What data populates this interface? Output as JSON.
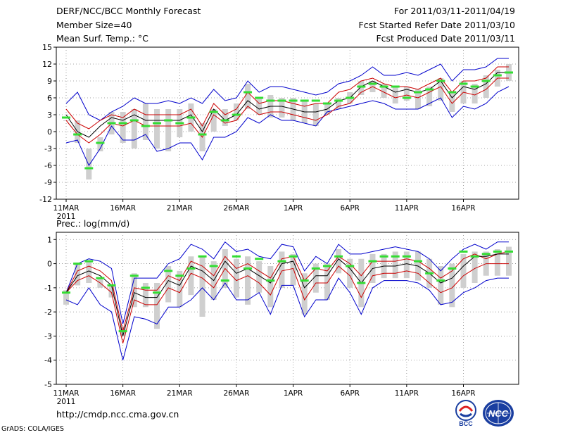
{
  "header": {
    "title": "DERF/NCC/BCC Monthly Forecast",
    "member_size": "Member Size=40",
    "variable": "Mean Surf. Temp.: °C",
    "forecast_period": "For 2011/03/11-2011/04/19",
    "fcst_started": "Fcst Started Refer Date 2011/03/10",
    "fcst_produced": "Fcst Produced Date 2011/03/11"
  },
  "footer": {
    "url": "http://cmdp.ncc.cma.gov.cn",
    "credit": "GrADS: COLA/IGES",
    "logo_bcc": "BCC",
    "logo_ncc": "NCC"
  },
  "colors": {
    "envelope": "#0000cc",
    "spread": "#cc0000",
    "mean": "#000000",
    "box": "#cfcfcf",
    "obs": "#33dd33",
    "grid": "#888888"
  },
  "chart_data": [
    {
      "type": "line",
      "title": "Mean Surf. Temp.: °C",
      "x": [
        1,
        2,
        3,
        4,
        5,
        6,
        7,
        8,
        9,
        10,
        11,
        12,
        13,
        14,
        15,
        16,
        17,
        18,
        19,
        20,
        21,
        22,
        23,
        24,
        25,
        26,
        27,
        28,
        29,
        30,
        31,
        32,
        33,
        34,
        35,
        36,
        37,
        38,
        39,
        40
      ],
      "x_ticks": {
        "positions": [
          1,
          6,
          11,
          16,
          21,
          26,
          31,
          36
        ],
        "labels": [
          "11MAR",
          "16MAR",
          "21MAR",
          "26MAR",
          "1APR",
          "6APR",
          "11APR",
          "16APR"
        ]
      },
      "x_year_label": "2011",
      "ylim": [
        -12,
        15
      ],
      "y_ticks": [
        -12,
        -9,
        -6,
        -3,
        0,
        3,
        6,
        9,
        12,
        15
      ],
      "grid": true,
      "series": [
        {
          "name": "max",
          "values": [
            5,
            7,
            3,
            2,
            3.5,
            4.5,
            6,
            5,
            5,
            5.5,
            5,
            6,
            5,
            7.5,
            5.5,
            6,
            9,
            7,
            8,
            8,
            7.5,
            7,
            6.5,
            7,
            8.5,
            9,
            10,
            11.5,
            10,
            10,
            10.5,
            10,
            11,
            12,
            9,
            11,
            11,
            11.5,
            13,
            13
          ]
        },
        {
          "name": "spread_upper",
          "values": [
            4,
            1.5,
            0.5,
            2,
            3,
            2.5,
            4,
            3,
            3,
            3,
            3,
            4,
            1,
            5,
            3,
            4,
            7,
            5,
            5.5,
            5.5,
            5,
            4.5,
            5,
            5,
            7,
            7.5,
            9,
            9.5,
            8.5,
            8,
            8,
            7.5,
            8.5,
            9.5,
            7,
            9,
            9,
            9.5,
            11.5,
            11.5
          ]
        },
        {
          "name": "mean",
          "values": [
            3,
            0,
            -1,
            1,
            2.5,
            2,
            3,
            2,
            2,
            2,
            2,
            3,
            0,
            4,
            2,
            3,
            5.5,
            4,
            4.5,
            4.5,
            4,
            3.5,
            3.5,
            4,
            5.5,
            6,
            8,
            9,
            8,
            7,
            7.5,
            7,
            7.5,
            9,
            6,
            8,
            7.5,
            8.5,
            10.5,
            10.5
          ]
        },
        {
          "name": "spread_lower",
          "values": [
            2,
            -0.5,
            -2,
            -0.5,
            1.5,
            1,
            2,
            1,
            1,
            1,
            1,
            1.5,
            -1,
            3,
            1.5,
            2,
            4.5,
            3,
            3.5,
            3.5,
            3,
            2.5,
            2,
            3,
            4.5,
            5,
            7,
            8,
            7,
            6,
            6.5,
            6,
            7,
            8,
            5,
            7,
            6.5,
            7.5,
            9.5,
            9.5
          ]
        },
        {
          "name": "min",
          "values": [
            -2,
            -1.5,
            -6,
            -3,
            1,
            -1.5,
            -1.5,
            -0.5,
            -3.5,
            -3,
            -2,
            -2,
            -5,
            -1,
            -1,
            0,
            2.5,
            1.5,
            3,
            2,
            2,
            1.5,
            1,
            3.5,
            4,
            4.5,
            5,
            5.5,
            5,
            4,
            4,
            4,
            5,
            6,
            2.5,
            4.5,
            4,
            5,
            7,
            8
          ]
        },
        {
          "name": "observed",
          "values": [
            2.5,
            -0.5,
            -6.5,
            -2,
            1.5,
            1.5,
            2,
            1,
            1.5,
            2,
            1.5,
            2.5,
            -0.5,
            3.5,
            2,
            3,
            7,
            6,
            5.5,
            5.5,
            5.5,
            5.5,
            5.5,
            5,
            5.5,
            6,
            8,
            8.5,
            8,
            8,
            6,
            7,
            7.5,
            9,
            7,
            8.5,
            8,
            9,
            10,
            10.5
          ]
        },
        {
          "name": "box_top",
          "values": [
            2,
            2,
            -3,
            -1,
            3.5,
            3.5,
            4,
            5,
            4,
            4,
            4,
            5,
            1.5,
            4,
            4,
            5,
            8.5,
            6,
            6.5,
            6,
            6,
            5.5,
            5,
            5,
            6,
            7,
            9,
            9,
            8.5,
            8,
            8,
            7.5,
            8,
            9.5,
            7,
            9,
            8.5,
            10,
            11,
            12
          ]
        },
        {
          "name": "box_bottom",
          "values": [
            2,
            -2,
            -8.5,
            -3.5,
            -0.5,
            -2,
            -3,
            -1.5,
            -3,
            -3.5,
            -1,
            0,
            -3.5,
            0,
            1,
            2,
            4,
            3,
            2.5,
            2.5,
            2,
            1.5,
            1,
            3,
            4,
            5,
            6.5,
            7,
            6,
            5,
            5.5,
            4,
            4.5,
            5.5,
            3.5,
            5,
            5,
            6,
            8,
            9
          ]
        }
      ]
    },
    {
      "type": "line",
      "title": "Prec.: log(mm/d)",
      "x": [
        1,
        2,
        3,
        4,
        5,
        6,
        7,
        8,
        9,
        10,
        11,
        12,
        13,
        14,
        15,
        16,
        17,
        18,
        19,
        20,
        21,
        22,
        23,
        24,
        25,
        26,
        27,
        28,
        29,
        30,
        31,
        32,
        33,
        34,
        35,
        36,
        37,
        38,
        39,
        40
      ],
      "x_ticks": {
        "positions": [
          1,
          6,
          11,
          16,
          21,
          26,
          31,
          36
        ],
        "labels": [
          "11MAR",
          "16MAR",
          "21MAR",
          "26MAR",
          "1APR",
          "6APR",
          "11APR",
          "16APR"
        ]
      },
      "x_year_label": "2011",
      "ylim": [
        -5,
        1.3
      ],
      "y_ticks": [
        -5,
        -4,
        -3,
        -2,
        -1,
        0,
        1
      ],
      "grid": true,
      "series": [
        {
          "name": "max",
          "values": [
            -1.2,
            0,
            0.2,
            0.1,
            -0.2,
            -2.5,
            -0.6,
            -0.6,
            -0.6,
            0,
            0.2,
            0.8,
            0.6,
            0.2,
            0.9,
            0.5,
            0.6,
            0.3,
            0.2,
            0.8,
            0.7,
            -0.3,
            0.3,
            0,
            0.8,
            0.4,
            0.4,
            0.5,
            0.6,
            0.7,
            0.6,
            0.5,
            0.2,
            -0.3,
            0.2,
            0.6,
            0.8,
            0.6,
            0.9,
            0.9
          ]
        },
        {
          "name": "spread_upper",
          "values": [
            -1.2,
            -0.3,
            -0.1,
            -0.3,
            -0.7,
            -2.8,
            -1,
            -1.1,
            -1.1,
            -0.5,
            -0.7,
            0.1,
            -0.1,
            -0.5,
            0.3,
            -0.2,
            0,
            -0.3,
            -0.6,
            0.2,
            0.3,
            -0.7,
            -0.2,
            -0.3,
            0.3,
            0,
            -0.5,
            0.1,
            0.1,
            0.1,
            0.2,
            0.1,
            -0.2,
            -0.6,
            -0.3,
            0.2,
            0.4,
            0.2,
            0.4,
            0.5
          ]
        },
        {
          "name": "mean",
          "values": [
            -1.2,
            -0.5,
            -0.3,
            -0.5,
            -0.9,
            -3,
            -1.2,
            -1.4,
            -1.4,
            -0.7,
            -0.9,
            -0.1,
            -0.3,
            -0.7,
            0.1,
            -0.4,
            -0.2,
            -0.5,
            -0.8,
            0,
            0.1,
            -1,
            -0.5,
            -0.5,
            0.2,
            -0.2,
            -0.8,
            -0.2,
            -0.1,
            -0.1,
            0,
            -0.1,
            -0.4,
            -0.8,
            -0.6,
            -0.1,
            0.3,
            0.3,
            0.4,
            0.4
          ]
        },
        {
          "name": "spread_lower",
          "values": [
            -1.2,
            -0.7,
            -0.5,
            -0.8,
            -1.2,
            -3.3,
            -1.5,
            -1.7,
            -1.7,
            -1,
            -1.2,
            -0.4,
            -0.6,
            -1,
            -0.2,
            -0.7,
            -0.5,
            -0.8,
            -1.3,
            -0.3,
            -0.2,
            -1.5,
            -0.8,
            -0.8,
            -0.1,
            -0.5,
            -1.4,
            -0.5,
            -0.4,
            -0.4,
            -0.3,
            -0.4,
            -0.8,
            -1.2,
            -1,
            -0.5,
            -0.2,
            0,
            0,
            0
          ]
        },
        {
          "name": "min",
          "values": [
            -1.5,
            -1.7,
            -1,
            -1.7,
            -2,
            -4,
            -2.2,
            -2.3,
            -2.5,
            -1.8,
            -1.8,
            -1.5,
            -1,
            -1.5,
            -0.8,
            -1.5,
            -1.5,
            -1.2,
            -2.1,
            -0.9,
            -0.9,
            -2.2,
            -1.5,
            -1.5,
            -0.6,
            -1.2,
            -2.1,
            -1,
            -0.7,
            -0.7,
            -0.7,
            -0.8,
            -1.1,
            -1.7,
            -1.6,
            -1.2,
            -1,
            -0.7,
            -0.6,
            -0.6
          ]
        },
        {
          "name": "observed",
          "values": [
            -1.2,
            0,
            0.1,
            -0.6,
            -0.9,
            -2.8,
            -0.5,
            -1,
            -1.2,
            -0.3,
            -0.5,
            -0.2,
            0.3,
            -0.1,
            -0.7,
            0.3,
            -0.2,
            0.2,
            -0.7,
            0.1,
            0.3,
            -0.7,
            -0.2,
            -0.1,
            0.3,
            -0.1,
            -0.8,
            0.1,
            0.3,
            0.3,
            0.3,
            0.1,
            -0.4,
            -0.7,
            -0.2,
            0.5,
            0.3,
            0.4,
            0.5,
            0.5
          ]
        },
        {
          "name": "box_top",
          "values": [
            -1.1,
            0,
            0.1,
            -0.6,
            -0.9,
            -2.6,
            -0.4,
            -0.8,
            -0.8,
            -0.1,
            -0.3,
            0.3,
            0.3,
            0.1,
            0.6,
            0.2,
            0.3,
            0.1,
            -0.1,
            0.5,
            0.4,
            -0.4,
            0,
            0,
            0.6,
            0.2,
            0.2,
            0.4,
            0.4,
            0.5,
            0.5,
            0.5,
            0.2,
            -0.1,
            0,
            0.4,
            0.5,
            0.5,
            0.6,
            0.7
          ]
        },
        {
          "name": "box_bottom",
          "values": [
            -1.7,
            -0.9,
            -0.8,
            -1,
            -1.4,
            -3,
            -1.8,
            -1.8,
            -2.7,
            -1.6,
            -1.8,
            -1.3,
            -2.2,
            -1.5,
            -1,
            -1.4,
            -1.7,
            -1.2,
            -1.8,
            -1,
            -0.9,
            -2.1,
            -1.2,
            -1.5,
            -0.4,
            -1,
            -1.8,
            -0.8,
            -0.6,
            -0.6,
            -0.6,
            -0.7,
            -1,
            -1.7,
            -1.8,
            -1,
            -0.8,
            -0.5,
            -0.5,
            -0.5
          ]
        }
      ]
    }
  ]
}
